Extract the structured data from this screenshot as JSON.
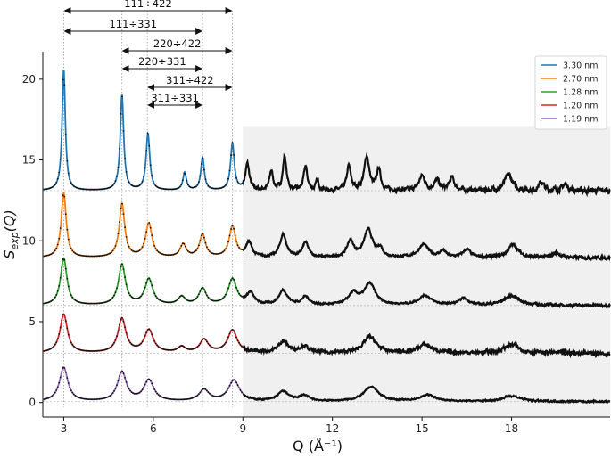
{
  "chart_data": {
    "type": "line",
    "title": "",
    "xlabel": "Q (Å⁻¹)",
    "ylabel": "S_exp(Q)",
    "xlim": [
      2.3,
      21.3
    ],
    "ylim": [
      -0.9,
      21.7
    ],
    "xticks": [
      3,
      6,
      9,
      12,
      15,
      18
    ],
    "yticks": [
      0,
      5,
      10,
      15,
      20
    ],
    "shaded_region": {
      "x_from": 9.0,
      "x_to": 21.3,
      "color": "#f0f0f0"
    },
    "legend": {
      "placement": "top-right",
      "entries": [
        {
          "label": "3.30 nm",
          "color": "#1f77b4"
        },
        {
          "label": "2.70 nm",
          "color": "#ff7f0e"
        },
        {
          "label": "1.28 nm",
          "color": "#2ca02c"
        },
        {
          "label": "1.20 nm",
          "color": "#d62728"
        },
        {
          "label": "1.19 nm",
          "color": "#9467bd"
        }
      ]
    },
    "peak_guides": [
      3.0,
      4.95,
      5.8,
      7.65,
      8.65
    ],
    "annotations": [
      {
        "label": "111÷422",
        "x_from": 3.0,
        "x_to": 8.65
      },
      {
        "label": "111÷331",
        "x_from": 3.0,
        "x_to": 7.65
      },
      {
        "label": "220÷422",
        "x_from": 4.95,
        "x_to": 8.65
      },
      {
        "label": "220÷331",
        "x_from": 4.95,
        "x_to": 7.65
      },
      {
        "label": "311÷422",
        "x_from": 5.8,
        "x_to": 8.65
      },
      {
        "label": "311÷331",
        "x_from": 5.8,
        "x_to": 7.65
      }
    ],
    "series": [
      {
        "label": "3.30 nm",
        "color": "#1f77b4",
        "offset": 13.1,
        "peaks": [
          [
            3.0,
            7.5,
            0.065
          ],
          [
            4.95,
            5.9,
            0.07
          ],
          [
            5.82,
            3.5,
            0.075
          ],
          [
            7.05,
            1.1,
            0.07
          ],
          [
            7.65,
            2.0,
            0.07
          ],
          [
            8.65,
            2.9,
            0.075
          ],
          [
            9.15,
            1.6,
            0.08
          ],
          [
            9.95,
            1.2,
            0.07
          ],
          [
            10.4,
            2.1,
            0.07
          ],
          [
            11.1,
            1.5,
            0.07
          ],
          [
            11.5,
            0.6,
            0.06
          ],
          [
            12.55,
            1.5,
            0.08
          ],
          [
            13.15,
            2.1,
            0.1
          ],
          [
            13.55,
            1.3,
            0.08
          ],
          [
            15.0,
            0.9,
            0.12
          ],
          [
            15.5,
            0.6,
            0.1
          ],
          [
            16.0,
            0.8,
            0.1
          ],
          [
            17.9,
            1.0,
            0.15
          ],
          [
            19.0,
            0.5,
            0.1
          ],
          [
            19.8,
            0.4,
            0.1
          ]
        ],
        "noise": 0.18
      },
      {
        "label": "2.70 nm",
        "color": "#ff7f0e",
        "offset": 8.95,
        "peaks": [
          [
            3.0,
            4.0,
            0.1
          ],
          [
            4.95,
            3.3,
            0.11
          ],
          [
            5.85,
            2.1,
            0.13
          ],
          [
            7.0,
            0.8,
            0.12
          ],
          [
            7.65,
            1.4,
            0.12
          ],
          [
            8.65,
            1.9,
            0.13
          ],
          [
            9.2,
            0.9,
            0.12
          ],
          [
            10.35,
            1.4,
            0.13
          ],
          [
            11.1,
            0.9,
            0.12
          ],
          [
            12.6,
            1.0,
            0.13
          ],
          [
            13.2,
            1.7,
            0.17
          ],
          [
            13.6,
            0.5,
            0.1
          ],
          [
            15.05,
            0.8,
            0.2
          ],
          [
            15.7,
            0.4,
            0.12
          ],
          [
            16.5,
            0.5,
            0.15
          ],
          [
            18.05,
            0.8,
            0.2
          ],
          [
            19.5,
            0.3,
            0.15
          ]
        ],
        "noise": 0.1
      },
      {
        "label": "1.28 nm",
        "color": "#2ca02c",
        "offset": 6.0,
        "peaks": [
          [
            3.0,
            2.9,
            0.13
          ],
          [
            4.95,
            2.5,
            0.14
          ],
          [
            5.85,
            1.6,
            0.16
          ],
          [
            6.95,
            0.5,
            0.14
          ],
          [
            7.65,
            1.0,
            0.15
          ],
          [
            8.65,
            1.6,
            0.17
          ],
          [
            9.25,
            0.7,
            0.15
          ],
          [
            10.35,
            0.9,
            0.17
          ],
          [
            11.1,
            0.5,
            0.15
          ],
          [
            12.7,
            0.7,
            0.2
          ],
          [
            13.25,
            1.3,
            0.22
          ],
          [
            15.1,
            0.6,
            0.25
          ],
          [
            16.4,
            0.4,
            0.2
          ],
          [
            18.0,
            0.6,
            0.3
          ]
        ],
        "noise": 0.08
      },
      {
        "label": "1.20 nm",
        "color": "#d62728",
        "offset": 3.05,
        "peaks": [
          [
            3.0,
            2.4,
            0.15
          ],
          [
            4.95,
            2.1,
            0.16
          ],
          [
            5.85,
            1.4,
            0.18
          ],
          [
            6.95,
            0.35,
            0.15
          ],
          [
            7.7,
            0.8,
            0.17
          ],
          [
            8.65,
            1.4,
            0.19
          ],
          [
            10.35,
            0.7,
            0.2
          ],
          [
            11.05,
            0.4,
            0.18
          ],
          [
            13.25,
            1.0,
            0.26
          ],
          [
            15.1,
            0.5,
            0.28
          ],
          [
            18.0,
            0.5,
            0.3
          ]
        ],
        "noise": 0.14
      },
      {
        "label": "1.19 nm",
        "color": "#9467bd",
        "offset": 0.05,
        "peaks": [
          [
            3.0,
            2.1,
            0.17
          ],
          [
            4.95,
            1.8,
            0.18
          ],
          [
            5.85,
            1.3,
            0.2
          ],
          [
            7.7,
            0.7,
            0.2
          ],
          [
            8.7,
            1.3,
            0.22
          ],
          [
            10.35,
            0.6,
            0.22
          ],
          [
            11.05,
            0.35,
            0.2
          ],
          [
            13.3,
            0.9,
            0.3
          ],
          [
            15.2,
            0.4,
            0.3
          ],
          [
            18.0,
            0.35,
            0.35
          ]
        ],
        "noise": 0.06
      }
    ]
  }
}
